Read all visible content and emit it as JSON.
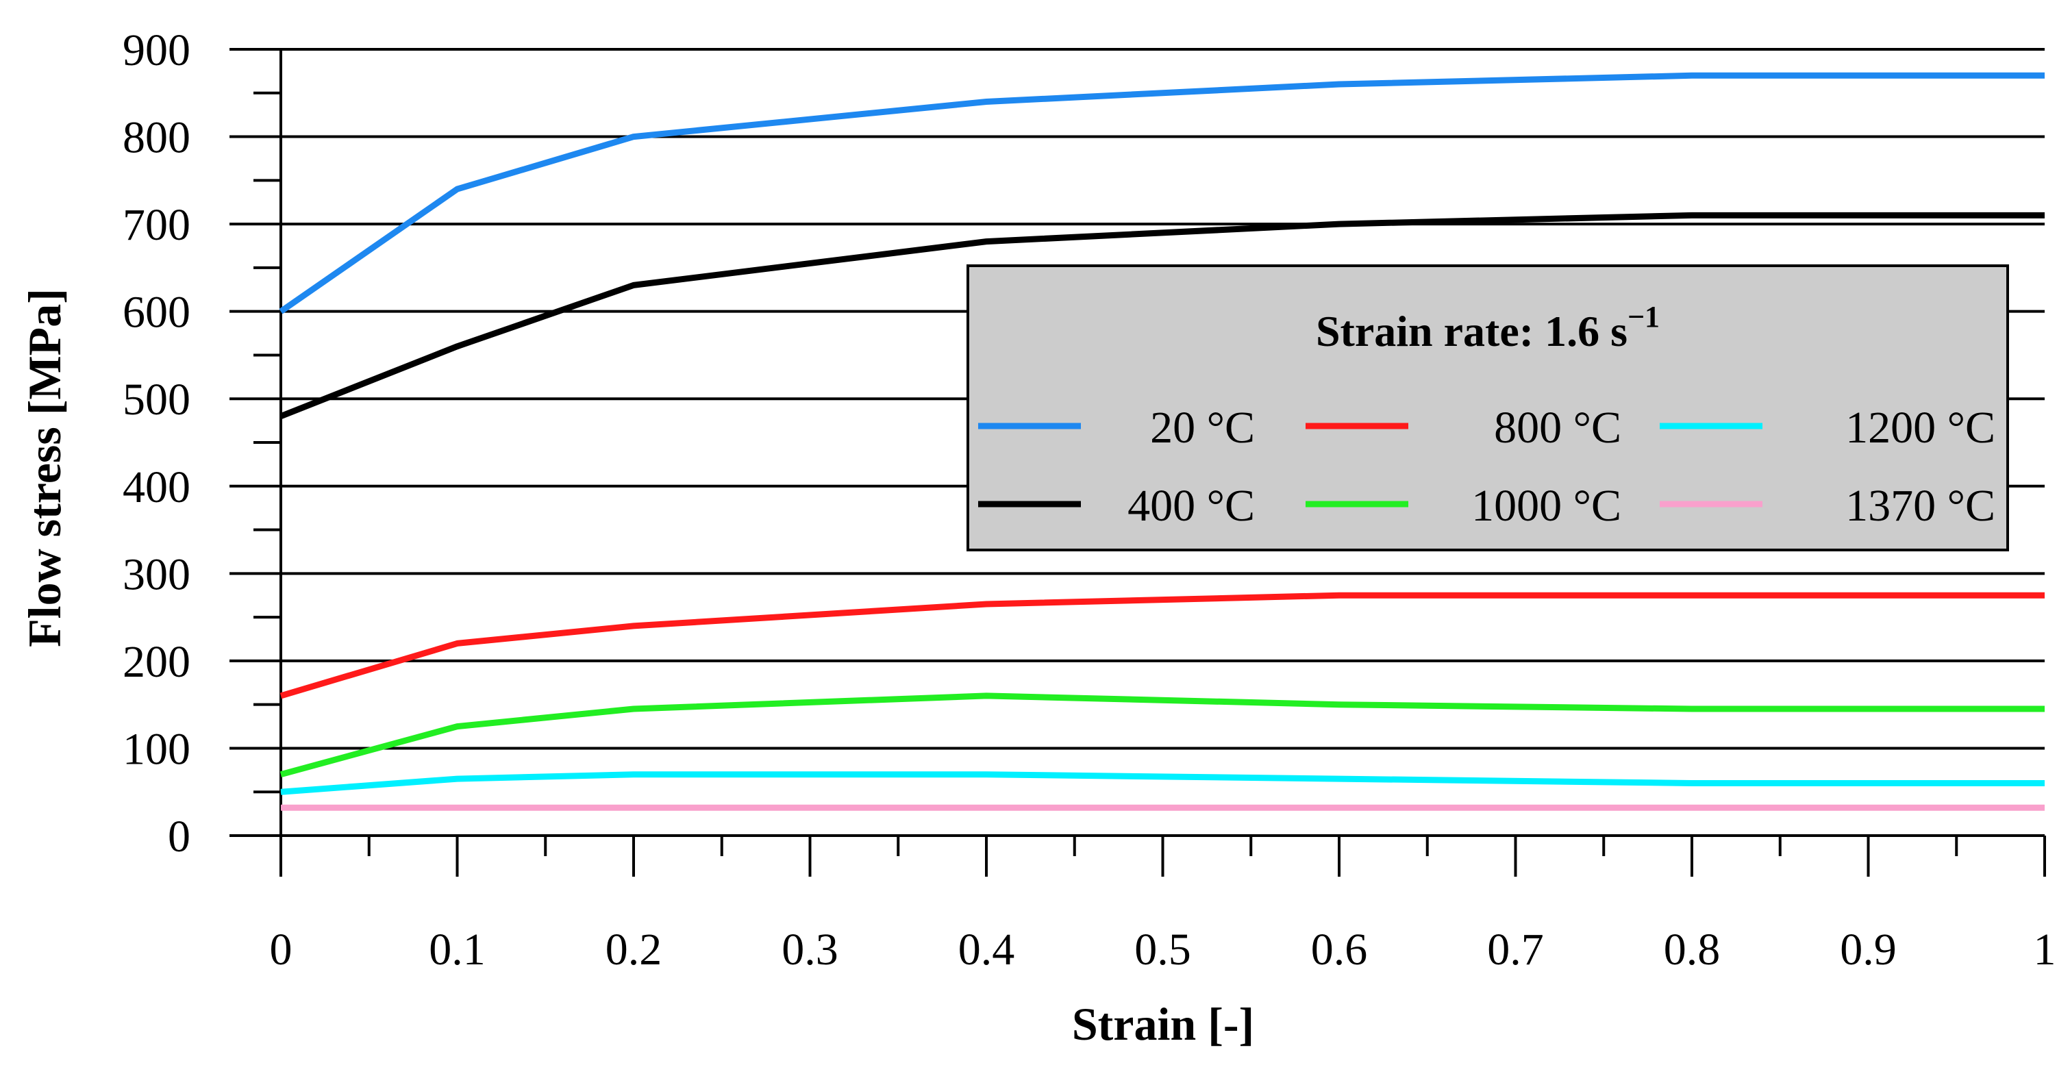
{
  "chart_data": {
    "type": "line",
    "xlabel": "Strain [-]",
    "ylabel": "Flow stress [MPa]",
    "xlim": [
      0,
      1
    ],
    "ylim": [
      0,
      900
    ],
    "x_ticks": [
      0,
      0.1,
      0.2,
      0.3,
      0.4,
      0.5,
      0.6,
      0.7,
      0.8,
      0.9,
      1
    ],
    "x_tick_labels": [
      "0",
      "0.1",
      "0.2",
      "0.3",
      "0.4",
      "0.5",
      "0.6",
      "0.7",
      "0.8",
      "0.9",
      "1"
    ],
    "y_ticks": [
      0,
      100,
      200,
      300,
      400,
      500,
      600,
      700,
      800,
      900
    ],
    "y_tick_labels": [
      "0",
      "100",
      "200",
      "300",
      "400",
      "500",
      "600",
      "700",
      "800",
      "900"
    ],
    "grid": "horizontal",
    "legend": {
      "title": "Strain rate: 1.6 s",
      "title_superscript": "−1",
      "placement": "center-right",
      "columns": 3
    },
    "series": [
      {
        "name": "20 °C",
        "color": "#1e88f0",
        "x": [
          0,
          0.1,
          0.2,
          0.4,
          0.6,
          0.8,
          1
        ],
        "y": [
          600,
          740,
          800,
          840,
          860,
          870,
          870
        ]
      },
      {
        "name": "400 °C",
        "color": "#000000",
        "x": [
          0,
          0.1,
          0.2,
          0.4,
          0.6,
          0.8,
          1
        ],
        "y": [
          480,
          560,
          630,
          680,
          700,
          710,
          710
        ]
      },
      {
        "name": "800 °C",
        "color": "#ff1a1a",
        "x": [
          0,
          0.1,
          0.2,
          0.4,
          0.6,
          0.8,
          1
        ],
        "y": [
          160,
          220,
          240,
          265,
          275,
          275,
          275
        ]
      },
      {
        "name": "1000 °C",
        "color": "#22ee22",
        "x": [
          0,
          0.1,
          0.2,
          0.4,
          0.6,
          0.8,
          1
        ],
        "y": [
          70,
          125,
          145,
          160,
          150,
          145,
          145
        ]
      },
      {
        "name": "1200 °C",
        "color": "#00f0ff",
        "x": [
          0,
          0.1,
          0.2,
          0.4,
          0.6,
          0.8,
          1
        ],
        "y": [
          50,
          65,
          70,
          70,
          65,
          60,
          60
        ]
      },
      {
        "name": "1370 °C",
        "color": "#f9a0cc",
        "x": [
          0,
          0.1,
          0.2,
          0.4,
          0.6,
          0.8,
          1
        ],
        "y": [
          32,
          32,
          32,
          32,
          32,
          32,
          32
        ]
      }
    ]
  }
}
